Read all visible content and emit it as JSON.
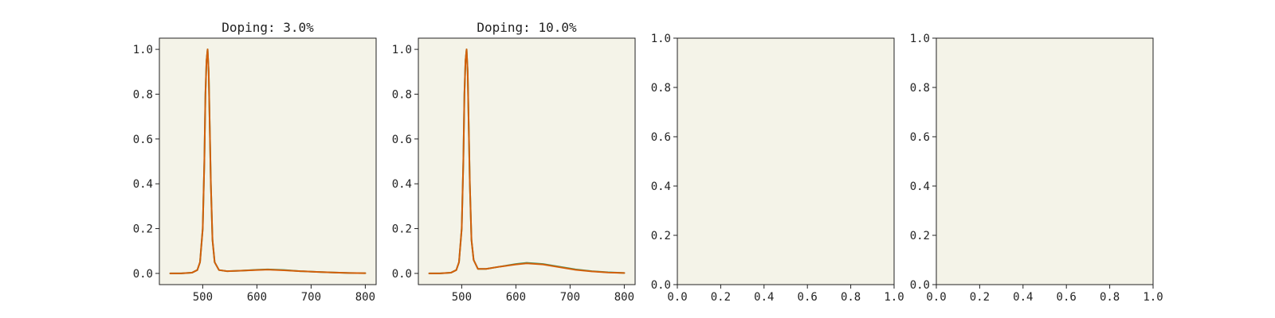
{
  "colors": {
    "plot_background": "#f4f3e8",
    "axis": "#222222",
    "series_orange": "#d35f0a",
    "series_green": "#2a9a6a"
  },
  "chart_data": [
    {
      "type": "line",
      "title": "Doping: 3.0%",
      "xlim": [
        420,
        820
      ],
      "ylim": [
        -0.05,
        1.05
      ],
      "xticks": [
        500,
        600,
        700,
        800
      ],
      "yticks": [
        0.0,
        0.2,
        0.4,
        0.6,
        0.8,
        1.0
      ],
      "xtick_labels": [
        "500",
        "600",
        "700",
        "800"
      ],
      "ytick_labels": [
        "0.0",
        "0.2",
        "0.4",
        "0.6",
        "0.8",
        "1.0"
      ],
      "series": [
        {
          "color": "#2a9a6a",
          "x": [
            440,
            460,
            480,
            490,
            495,
            500,
            503,
            505,
            507,
            509,
            511,
            513,
            515,
            518,
            522,
            530,
            545,
            570,
            600,
            620,
            650,
            680,
            710,
            740,
            770,
            800
          ],
          "y": [
            0.0,
            0.0,
            0.003,
            0.015,
            0.05,
            0.2,
            0.5,
            0.8,
            0.95,
            1.0,
            0.9,
            0.65,
            0.4,
            0.15,
            0.05,
            0.015,
            0.01,
            0.012,
            0.016,
            0.018,
            0.015,
            0.01,
            0.007,
            0.004,
            0.002,
            0.001
          ]
        },
        {
          "color": "#d35f0a",
          "x": [
            440,
            460,
            480,
            490,
            495,
            500,
            503,
            505,
            507,
            509,
            511,
            513,
            515,
            518,
            522,
            530,
            545,
            570,
            600,
            620,
            650,
            680,
            710,
            740,
            770,
            800
          ],
          "y": [
            0.0,
            0.0,
            0.003,
            0.015,
            0.05,
            0.2,
            0.5,
            0.8,
            0.95,
            1.0,
            0.9,
            0.65,
            0.4,
            0.15,
            0.05,
            0.015,
            0.01,
            0.012,
            0.015,
            0.017,
            0.014,
            0.01,
            0.007,
            0.004,
            0.002,
            0.001
          ]
        }
      ]
    },
    {
      "type": "line",
      "title": "Doping: 10.0%",
      "xlim": [
        420,
        820
      ],
      "ylim": [
        -0.05,
        1.05
      ],
      "xticks": [
        500,
        600,
        700,
        800
      ],
      "yticks": [
        0.0,
        0.2,
        0.4,
        0.6,
        0.8,
        1.0
      ],
      "xtick_labels": [
        "500",
        "600",
        "700",
        "800"
      ],
      "ytick_labels": [
        "0.0",
        "0.2",
        "0.4",
        "0.6",
        "0.8",
        "1.0"
      ],
      "series": [
        {
          "color": "#2a9a6a",
          "x": [
            440,
            460,
            480,
            490,
            495,
            500,
            503,
            505,
            507,
            509,
            511,
            513,
            515,
            518,
            522,
            530,
            545,
            570,
            600,
            620,
            650,
            680,
            710,
            740,
            770,
            800
          ],
          "y": [
            0.0,
            0.0,
            0.003,
            0.015,
            0.05,
            0.2,
            0.5,
            0.8,
            0.95,
            1.0,
            0.9,
            0.65,
            0.4,
            0.15,
            0.06,
            0.02,
            0.02,
            0.03,
            0.042,
            0.047,
            0.042,
            0.03,
            0.018,
            0.01,
            0.005,
            0.002
          ]
        },
        {
          "color": "#d35f0a",
          "x": [
            440,
            460,
            480,
            490,
            495,
            500,
            503,
            505,
            507,
            509,
            511,
            513,
            515,
            518,
            522,
            530,
            545,
            570,
            600,
            620,
            650,
            680,
            710,
            740,
            770,
            800
          ],
          "y": [
            0.0,
            0.0,
            0.003,
            0.015,
            0.05,
            0.2,
            0.5,
            0.8,
            0.95,
            1.0,
            0.9,
            0.65,
            0.4,
            0.15,
            0.06,
            0.02,
            0.02,
            0.03,
            0.04,
            0.045,
            0.04,
            0.028,
            0.016,
            0.009,
            0.004,
            0.002
          ]
        }
      ]
    },
    {
      "type": "line",
      "title": "",
      "xlim": [
        0.0,
        1.0
      ],
      "ylim": [
        0.0,
        1.0
      ],
      "xticks": [
        0.0,
        0.2,
        0.4,
        0.6,
        0.8,
        1.0
      ],
      "yticks": [
        0.0,
        0.2,
        0.4,
        0.6,
        0.8,
        1.0
      ],
      "xtick_labels": [
        "0.0",
        "0.2",
        "0.4",
        "0.6",
        "0.8",
        "1.0"
      ],
      "ytick_labels": [
        "0.0",
        "0.2",
        "0.4",
        "0.6",
        "0.8",
        "1.0"
      ],
      "series": []
    },
    {
      "type": "line",
      "title": "",
      "xlim": [
        0.0,
        1.0
      ],
      "ylim": [
        0.0,
        1.0
      ],
      "xticks": [
        0.0,
        0.2,
        0.4,
        0.6,
        0.8,
        1.0
      ],
      "yticks": [
        0.0,
        0.2,
        0.4,
        0.6,
        0.8,
        1.0
      ],
      "xtick_labels": [
        "0.0",
        "0.2",
        "0.4",
        "0.6",
        "0.8",
        "1.0"
      ],
      "ytick_labels": [
        "0.0",
        "0.2",
        "0.4",
        "0.6",
        "0.8",
        "1.0"
      ],
      "series": []
    }
  ]
}
